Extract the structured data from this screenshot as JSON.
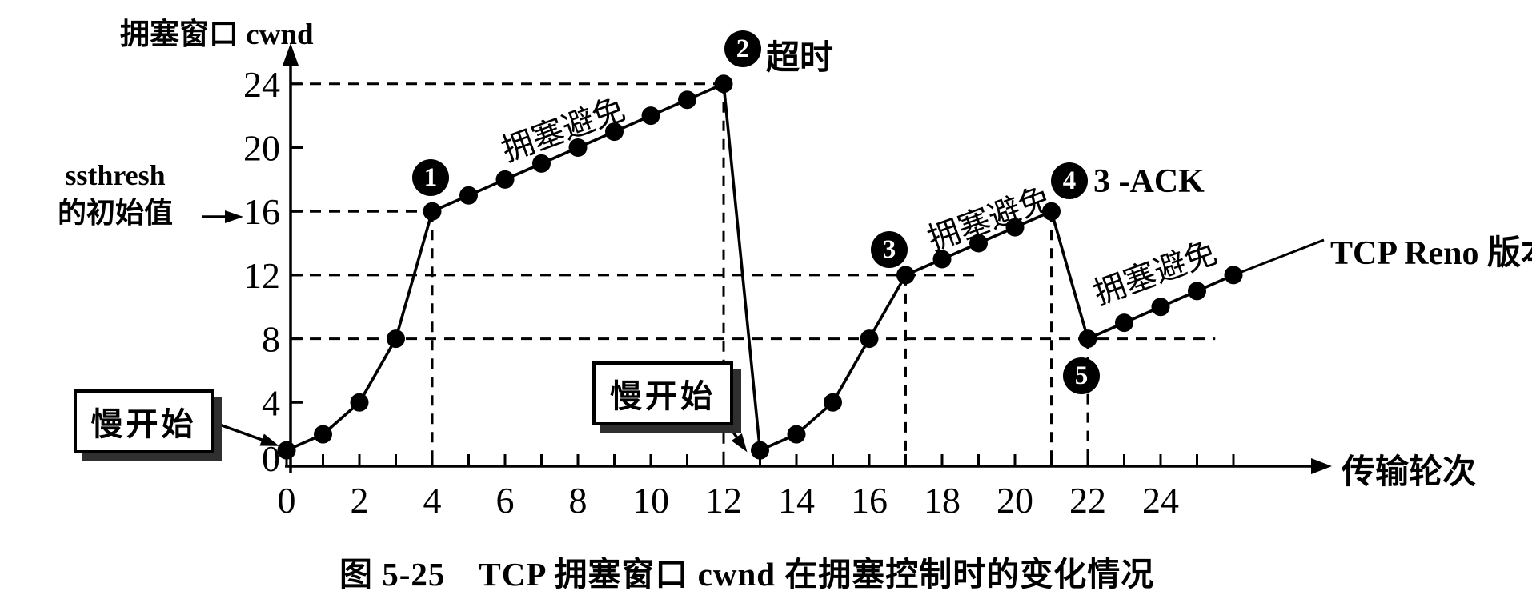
{
  "figure": {
    "y_axis_title": "拥塞窗口 cwnd",
    "x_axis_title": "传输轮次",
    "ssthresh_line1": "ssthresh",
    "ssthresh_line2": "的初始值",
    "reno_label": "TCP Reno 版本",
    "caption": "图 5-25　TCP 拥塞窗口 cwnd 在拥塞控制时的变化情况"
  },
  "chart_data": {
    "type": "line",
    "title": "图 5-25　TCP 拥塞窗口 cwnd 在拥塞控制时的变化情况",
    "xlabel": "传输轮次",
    "ylabel": "拥塞窗口 cwnd",
    "xlim": [
      0,
      26
    ],
    "ylim": [
      0,
      24
    ],
    "grid": "dashed-guides-only",
    "legend": "none",
    "ssthresh_initial": 16,
    "x_tick_labels": [
      "0",
      "2",
      "4",
      "6",
      "8",
      "10",
      "12",
      "14",
      "16",
      "18",
      "20",
      "22",
      "24"
    ],
    "x_tick_values": [
      0,
      2,
      4,
      6,
      8,
      10,
      12,
      14,
      16,
      18,
      20,
      22,
      24
    ],
    "x_minor_tick_values": [
      0,
      1,
      2,
      3,
      4,
      5,
      6,
      7,
      8,
      9,
      10,
      11,
      12,
      13,
      14,
      15,
      16,
      17,
      18,
      19,
      20,
      21,
      22,
      23,
      24,
      25,
      26
    ],
    "y_tick_labels": [
      "0",
      "4",
      "8",
      "12",
      "16",
      "20",
      "24"
    ],
    "y_tick_values": [
      0,
      4,
      8,
      12,
      16,
      20,
      24
    ],
    "series": [
      {
        "name": "cwnd",
        "points": [
          [
            0,
            1
          ],
          [
            1,
            2
          ],
          [
            2,
            4
          ],
          [
            3,
            8
          ],
          [
            4,
            16
          ],
          [
            5,
            17
          ],
          [
            6,
            18
          ],
          [
            7,
            19
          ],
          [
            8,
            20
          ],
          [
            9,
            21
          ],
          [
            10,
            22
          ],
          [
            11,
            23
          ],
          [
            12,
            24
          ],
          [
            13,
            1
          ],
          [
            14,
            2
          ],
          [
            15,
            4
          ],
          [
            16,
            8
          ],
          [
            17,
            12
          ],
          [
            18,
            13
          ],
          [
            19,
            14
          ],
          [
            20,
            15
          ],
          [
            21,
            16
          ],
          [
            22,
            8
          ],
          [
            23,
            9
          ],
          [
            24,
            10
          ],
          [
            25,
            11
          ],
          [
            26,
            12
          ]
        ]
      }
    ],
    "h_guides": [
      {
        "v": 24,
        "t1": 0,
        "t2": 12
      },
      {
        "v": 16,
        "t1": 0,
        "t2": 4
      },
      {
        "v": 12,
        "t1": 0,
        "t2": 19
      },
      {
        "v": 8,
        "t1": 0,
        "t2": 25.5
      }
    ],
    "v_guides": [
      {
        "t": 4,
        "v1": 0,
        "v2": 16
      },
      {
        "t": 12,
        "v1": 0,
        "v2": 24
      },
      {
        "t": 17,
        "v1": 0,
        "v2": 12
      },
      {
        "t": 21,
        "v1": 0,
        "v2": 16
      },
      {
        "t": 22,
        "v1": 0,
        "v2": 8
      }
    ],
    "phase_labels": [
      {
        "text": "拥塞避免",
        "t": 7.7,
        "v": 21.2,
        "rot": -20
      },
      {
        "text": "拥塞避免",
        "t": 19.4,
        "v": 15.6,
        "rot": -20
      },
      {
        "text": "拥塞避免",
        "t": 23.95,
        "v": 12.2,
        "rot": -20
      }
    ],
    "slow_start_boxes": [
      {
        "text": "慢开始",
        "arrow_to": [
          0,
          1
        ]
      },
      {
        "text": "慢开始",
        "arrow_to": [
          13,
          1
        ]
      }
    ],
    "annotations": [
      {
        "num": "1",
        "at": [
          4,
          16
        ],
        "label": ""
      },
      {
        "num": "2",
        "at": [
          12,
          24
        ],
        "label": "超时"
      },
      {
        "num": "3",
        "at": [
          17,
          12
        ],
        "label": ""
      },
      {
        "num": "4",
        "at": [
          21,
          16
        ],
        "label": "3 -ACK"
      },
      {
        "num": "5",
        "at": [
          22,
          8
        ],
        "label": ""
      }
    ]
  }
}
